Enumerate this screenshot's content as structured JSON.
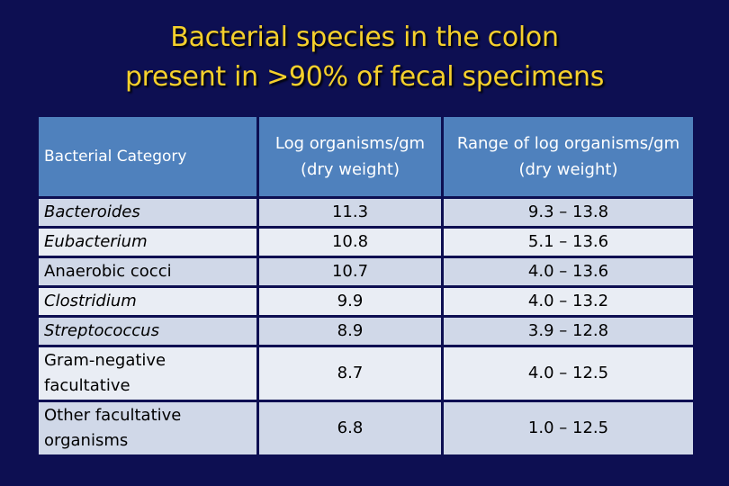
{
  "title": {
    "line1": "Bacterial species in the colon",
    "line2": "present in >90% of fecal specimens"
  },
  "table": {
    "headers": {
      "category": "Bacterial Category",
      "log": "Log organisms/gm (dry weight)",
      "range": "Range of log organisms/gm  (dry weight)"
    },
    "rows": [
      {
        "category": "Bacteroides",
        "italic": true,
        "log": "11.3",
        "range": "9.3 – 13.8"
      },
      {
        "category": "Eubacterium",
        "italic": true,
        "log": "10.8",
        "range": "5.1 – 13.6"
      },
      {
        "category": "Anaerobic cocci",
        "italic": false,
        "log": "10.7",
        "range": "4.0 – 13.6"
      },
      {
        "category": "Clostridium",
        "italic": true,
        "log": "9.9",
        "range": "4.0 – 13.2"
      },
      {
        "category": "Streptococcus",
        "italic": true,
        "log": "8.9",
        "range": "3.9 – 12.8"
      },
      {
        "category": "Gram-negative facultative",
        "italic": false,
        "log": "8.7",
        "range": "4.0 – 12.5"
      },
      {
        "category": "Other facultative organisms",
        "italic": false,
        "log": "6.8",
        "range": "1.0 – 12.5"
      }
    ]
  },
  "colors": {
    "background": "#0d0f52",
    "title": "#f5d02c",
    "header": "#4f81bd",
    "row_odd": "#d0d8e8",
    "row_even": "#e9edf4"
  }
}
